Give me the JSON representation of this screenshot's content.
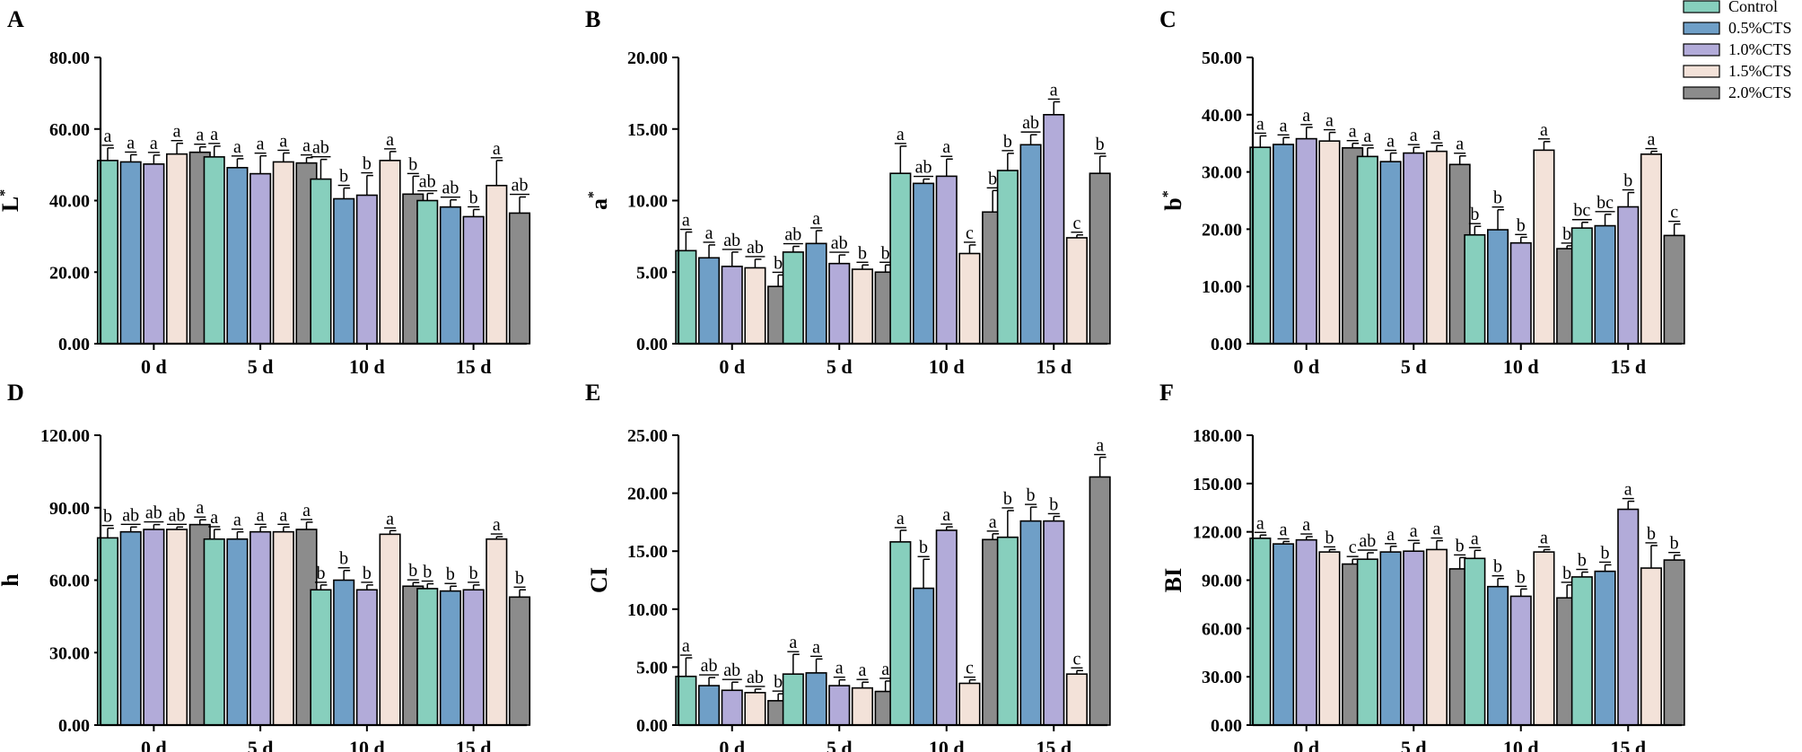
{
  "chart_data": [
    {
      "type": "bar",
      "panel": "A",
      "ylabel": "L",
      "ylabel_sup": "*",
      "categories": [
        "0 d",
        "5 d",
        "10 d",
        "15 d"
      ],
      "ylim": [
        0,
        80
      ],
      "yticks": [
        "0.00",
        "20.00",
        "40.00",
        "60.00",
        "80.00"
      ],
      "series": [
        {
          "name": "Control",
          "values": [
            51.2,
            52.2,
            46.0,
            40.0
          ],
          "errors": [
            3.5,
            3.0,
            5.5,
            2.0
          ],
          "letters": [
            "a",
            "a",
            "ab",
            "ab"
          ]
        },
        {
          "name": "0.5%CTS",
          "values": [
            50.8,
            49.2,
            40.5,
            38.2
          ],
          "errors": [
            2.0,
            2.5,
            3.0,
            2.0
          ],
          "letters": [
            "a",
            "a",
            "b",
            "ab"
          ]
        },
        {
          "name": "1.0%CTS",
          "values": [
            50.2,
            47.5,
            41.5,
            35.5
          ],
          "errors": [
            2.5,
            5.0,
            5.5,
            2.0
          ],
          "letters": [
            "a",
            "a",
            "b",
            "b"
          ]
        },
        {
          "name": "1.5%CTS",
          "values": [
            53.0,
            50.8,
            51.2,
            44.2
          ],
          "errors": [
            3.0,
            2.5,
            2.5,
            7.0
          ],
          "letters": [
            "a",
            "a",
            "a",
            "a"
          ]
        },
        {
          "name": "2.0%CTS",
          "values": [
            53.5,
            50.5,
            41.8,
            36.5
          ],
          "errors": [
            1.5,
            1.5,
            5.0,
            4.5
          ],
          "letters": [
            "a",
            "a",
            "b",
            "ab"
          ]
        }
      ]
    },
    {
      "type": "bar",
      "panel": "B",
      "ylabel": "a",
      "ylabel_sup": "*",
      "categories": [
        "0 d",
        "5 d",
        "10 d",
        "15 d"
      ],
      "ylim": [
        0,
        20
      ],
      "yticks": [
        "0.00",
        "5.00",
        "10.00",
        "15.00",
        "20.00"
      ],
      "series": [
        {
          "name": "Control",
          "values": [
            6.5,
            6.4,
            11.9,
            12.1
          ],
          "errors": [
            1.3,
            0.4,
            1.9,
            1.2
          ],
          "letters": [
            "a",
            "ab",
            "a",
            "b"
          ]
        },
        {
          "name": "0.5%CTS",
          "values": [
            6.0,
            7.0,
            11.2,
            13.9
          ],
          "errors": [
            0.9,
            0.9,
            0.3,
            0.7
          ],
          "letters": [
            "a",
            "a",
            "ab",
            "ab"
          ]
        },
        {
          "name": "1.0%CTS",
          "values": [
            5.4,
            5.6,
            11.7,
            16.0
          ],
          "errors": [
            1.0,
            0.6,
            1.2,
            0.9
          ],
          "letters": [
            "ab",
            "ab",
            "a",
            "a"
          ]
        },
        {
          "name": "1.5%CTS",
          "values": [
            5.3,
            5.2,
            6.3,
            7.4
          ],
          "errors": [
            0.6,
            0.3,
            0.6,
            0.2
          ],
          "letters": [
            "ab",
            "b",
            "c",
            "c"
          ]
        },
        {
          "name": "2.0%CTS",
          "values": [
            4.0,
            5.0,
            9.2,
            11.9
          ],
          "errors": [
            0.8,
            0.5,
            1.5,
            1.2
          ],
          "letters": [
            "b",
            "b",
            "b",
            "b"
          ]
        }
      ]
    },
    {
      "type": "bar",
      "panel": "C",
      "ylabel": "b",
      "ylabel_sup": "*",
      "categories": [
        "0 d",
        "5 d",
        "10 d",
        "15 d"
      ],
      "ylim": [
        0,
        50
      ],
      "yticks": [
        "0.00",
        "10.00",
        "20.00",
        "30.00",
        "40.00",
        "50.00"
      ],
      "series": [
        {
          "name": "Control",
          "values": [
            34.3,
            32.7,
            19.0,
            20.2
          ],
          "errors": [
            2.0,
            1.5,
            1.5,
            1.0
          ],
          "letters": [
            "a",
            "a",
            "b",
            "bc"
          ]
        },
        {
          "name": "0.5%CTS",
          "values": [
            34.8,
            31.8,
            19.9,
            20.6
          ],
          "errors": [
            1.2,
            1.5,
            3.5,
            2.0
          ],
          "letters": [
            "a",
            "a",
            "b",
            "bc"
          ]
        },
        {
          "name": "1.0%CTS",
          "values": [
            35.8,
            33.3,
            17.6,
            23.9
          ],
          "errors": [
            2.0,
            1.0,
            1.0,
            2.5
          ],
          "letters": [
            "a",
            "a",
            "b",
            "b"
          ]
        },
        {
          "name": "1.5%CTS",
          "values": [
            35.4,
            33.6,
            33.8,
            33.1
          ],
          "errors": [
            1.5,
            1.0,
            1.5,
            0.5
          ],
          "letters": [
            "a",
            "a",
            "a",
            "a"
          ]
        },
        {
          "name": "2.0%CTS",
          "values": [
            34.2,
            31.3,
            16.6,
            18.9
          ],
          "errors": [
            0.8,
            1.5,
            0.5,
            2.0
          ],
          "letters": [
            "a",
            "a",
            "b",
            "c"
          ]
        }
      ]
    },
    {
      "type": "bar",
      "panel": "D",
      "ylabel": "h",
      "ylabel_sup": "",
      "categories": [
        "0 d",
        "5 d",
        "10 d",
        "15 d"
      ],
      "ylim": [
        0,
        120
      ],
      "yticks": [
        "0.00",
        "30.00",
        "60.00",
        "90.00",
        "120.00"
      ],
      "series": [
        {
          "name": "Control",
          "values": [
            77.5,
            77.0,
            56.0,
            56.5
          ],
          "errors": [
            4.0,
            4.0,
            2.0,
            2.0
          ],
          "letters": [
            "b",
            "a",
            "b",
            "b"
          ]
        },
        {
          "name": "0.5%CTS",
          "values": [
            80.0,
            77.0,
            60.0,
            55.5
          ],
          "errors": [
            2.0,
            3.0,
            4.0,
            2.0
          ],
          "letters": [
            "ab",
            "a",
            "b",
            "b"
          ]
        },
        {
          "name": "1.0%CTS",
          "values": [
            81.0,
            80.0,
            56.0,
            56.0
          ],
          "errors": [
            2.0,
            2.0,
            2.0,
            2.0
          ],
          "letters": [
            "ab",
            "a",
            "b",
            "b"
          ]
        },
        {
          "name": "1.5%CTS",
          "values": [
            81.0,
            80.0,
            79.0,
            77.0
          ],
          "errors": [
            1.0,
            2.0,
            1.5,
            1.0
          ],
          "letters": [
            "ab",
            "a",
            "a",
            "a"
          ]
        },
        {
          "name": "2.0%CTS",
          "values": [
            83.0,
            81.0,
            57.5,
            53.0
          ],
          "errors": [
            2.0,
            3.0,
            1.5,
            3.0
          ],
          "letters": [
            "a",
            "a",
            "b",
            "b"
          ]
        }
      ]
    },
    {
      "type": "bar",
      "panel": "E",
      "ylabel": "CI",
      "ylabel_sup": "",
      "categories": [
        "0 d",
        "5 d",
        "10 d",
        "15 d"
      ],
      "ylim": [
        0,
        25
      ],
      "yticks": [
        "0.00",
        "5.00",
        "10.00",
        "15.00",
        "20.00",
        "25.00"
      ],
      "series": [
        {
          "name": "Control",
          "values": [
            4.2,
            4.4,
            15.8,
            16.2
          ],
          "errors": [
            1.6,
            1.7,
            1.0,
            2.3
          ],
          "letters": [
            "a",
            "a",
            "a",
            "b"
          ]
        },
        {
          "name": "0.5%CTS",
          "values": [
            3.4,
            4.5,
            11.8,
            17.6
          ],
          "errors": [
            0.7,
            1.2,
            2.5,
            1.2
          ],
          "letters": [
            "ab",
            "a",
            "b",
            "b"
          ]
        },
        {
          "name": "1.0%CTS",
          "values": [
            3.0,
            3.4,
            16.8,
            17.6
          ],
          "errors": [
            0.7,
            0.5,
            0.3,
            0.4
          ],
          "letters": [
            "ab",
            "a",
            "a",
            "b"
          ]
        },
        {
          "name": "1.5%CTS",
          "values": [
            2.8,
            3.2,
            3.6,
            4.4
          ],
          "errors": [
            0.3,
            0.5,
            0.3,
            0.3
          ],
          "letters": [
            "ab",
            "a",
            "c",
            "c"
          ]
        },
        {
          "name": "2.0%CTS",
          "values": [
            2.1,
            2.9,
            16.0,
            21.4
          ],
          "errors": [
            0.6,
            0.9,
            0.5,
            1.7
          ],
          "letters": [
            "b",
            "a",
            "a",
            "a"
          ]
        }
      ]
    },
    {
      "type": "bar",
      "panel": "F",
      "ylabel": "BI",
      "ylabel_sup": "",
      "categories": [
        "0 d",
        "5 d",
        "10 d",
        "15 d"
      ],
      "ylim": [
        0,
        180
      ],
      "yticks": [
        "0.00",
        "30.00",
        "60.00",
        "90.00",
        "120.00",
        "150.00",
        "180.00"
      ],
      "series": [
        {
          "name": "Control",
          "values": [
            116.0,
            103.0,
            103.5,
            92.0
          ],
          "errors": [
            2.0,
            4.0,
            5.0,
            3.0
          ],
          "letters": [
            "a",
            "ab",
            "a",
            "b"
          ]
        },
        {
          "name": "0.5%CTS",
          "values": [
            112.5,
            107.5,
            86.0,
            95.5
          ],
          "errors": [
            1.5,
            3.5,
            5.0,
            4.0
          ],
          "letters": [
            "a",
            "a",
            "b",
            "b"
          ]
        },
        {
          "name": "1.0%CTS",
          "values": [
            115.0,
            108.0,
            80.0,
            134.0
          ],
          "errors": [
            2.0,
            5.0,
            4.5,
            5.0
          ],
          "letters": [
            "a",
            "a",
            "b",
            "a"
          ]
        },
        {
          "name": "1.5%CTS",
          "values": [
            107.5,
            109.0,
            107.5,
            97.5
          ],
          "errors": [
            1.5,
            5.5,
            1.5,
            14.0
          ],
          "letters": [
            "b",
            "a",
            "a",
            "b"
          ]
        },
        {
          "name": "2.0%CTS",
          "values": [
            100.0,
            97.0,
            79.0,
            102.5
          ],
          "errors": [
            3.0,
            7.0,
            8.0,
            3.0
          ],
          "letters": [
            "c",
            "b",
            "b",
            "b"
          ]
        }
      ]
    }
  ],
  "legend": {
    "placement": "top-right",
    "items": [
      {
        "name": "Control",
        "color": "#87cfbd"
      },
      {
        "name": "0.5%CTS",
        "color": "#6f9fc7"
      },
      {
        "name": "1.0%CTS",
        "color": "#b2abd9"
      },
      {
        "name": "1.5%CTS",
        "color": "#f3e2d9"
      },
      {
        "name": "2.0%CTS",
        "color": "#8c8c8c"
      }
    ]
  },
  "colors": {
    "bar_stroke": "#000000",
    "axis": "#000000",
    "background": "#ffffff"
  }
}
